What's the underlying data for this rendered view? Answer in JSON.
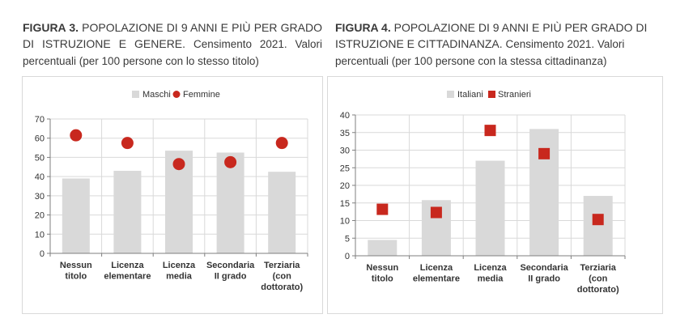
{
  "figures": [
    {
      "label": "FIGURA 3.",
      "title": "POPOLAZIONE DI 9 ANNI E PIÙ PER GRADO DI ISTRUZIONE E GENERE.",
      "subtitle": "Censimento 2021. Valori percentuali (per 100 persone con lo stesso titolo)"
    },
    {
      "label": "FIGURA 4.",
      "title": "POPOLAZIONE DI 9 ANNI E PIÙ PER GRADO DI ISTRUZIONE E CITTADINANZA.",
      "subtitle": "Censimento 2021. Valori percentuali (per 100 persone con la stessa cittadinanza)"
    }
  ],
  "colors": {
    "bar": "#d9d9d9",
    "dot": "#c8281e",
    "grid": "#d9d9d9",
    "axis": "#7f7f7f"
  },
  "chart_data": [
    {
      "type": "bar",
      "categories": [
        [
          "Nessun",
          "titolo"
        ],
        [
          "Licenza",
          "elementare"
        ],
        [
          "Licenza",
          "media"
        ],
        [
          "Secondaria",
          "II grado"
        ],
        [
          "Terziaria",
          "(con",
          "dottorato)"
        ]
      ],
      "series": [
        {
          "name": "Maschi",
          "kind": "bar",
          "values": [
            39,
            43,
            53.5,
            52.5,
            42.5
          ]
        },
        {
          "name": "Femmine",
          "kind": "marker-circle",
          "values": [
            61.5,
            57.5,
            46.5,
            47.5,
            57.5
          ]
        }
      ],
      "ylim": [
        0,
        70
      ],
      "yticks": [
        0,
        10,
        20,
        30,
        40,
        50,
        60,
        70
      ],
      "legend": "top-center",
      "grid": true
    },
    {
      "type": "bar",
      "categories": [
        [
          "Nessun",
          "titolo"
        ],
        [
          "Licenza",
          "elementare"
        ],
        [
          "Licenza",
          "media"
        ],
        [
          "Secondaria",
          "II grado"
        ],
        [
          "Terziaria",
          "(con",
          "dottorato)"
        ]
      ],
      "series": [
        {
          "name": "Italiani",
          "kind": "bar",
          "values": [
            4.5,
            15.8,
            27,
            36,
            17
          ]
        },
        {
          "name": "Stranieri",
          "kind": "marker-square",
          "values": [
            13.2,
            12.3,
            35.6,
            29,
            10.3
          ]
        }
      ],
      "ylim": [
        0,
        40
      ],
      "yticks": [
        0,
        5,
        10,
        15,
        20,
        25,
        30,
        35,
        40
      ],
      "legend": "top-center",
      "grid": true
    }
  ]
}
